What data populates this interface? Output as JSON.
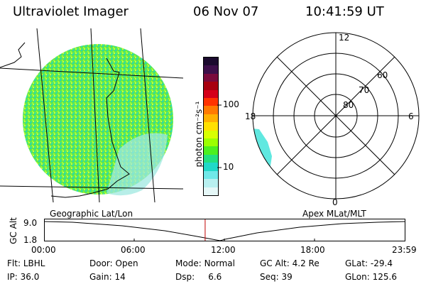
{
  "header": {
    "instrument": "Ultraviolet Imager",
    "date": "06 Nov 07",
    "time": "10:41:59 UT"
  },
  "colorbar": {
    "unit_label": "photon cm⁻²s⁻¹",
    "ticks": [
      "100",
      "10"
    ],
    "colors": [
      "#1b0a2e",
      "#3d0f4a",
      "#7a0a3c",
      "#a8000f",
      "#d4001a",
      "#ff3300",
      "#ff7a00",
      "#ffb000",
      "#ffe000",
      "#d8ff00",
      "#9cff00",
      "#4cf020",
      "#22e080",
      "#20d8c8",
      "#70e8e8",
      "#b8f0f0",
      "#e6f8f8"
    ]
  },
  "geo_map": {
    "projection_label": "Geographic Lat/Lon"
  },
  "polar": {
    "projection_label": "Apex MLat/MLT",
    "mlt_labels": {
      "top": "12",
      "left": "18",
      "right": "6",
      "bottom": "0"
    },
    "lat_labels": [
      "80",
      "70",
      "60"
    ]
  },
  "altitude_plot": {
    "axis_label": "GC Alt",
    "y_ticks": [
      "9.0",
      "1.8"
    ],
    "x_ticks": [
      "00:00",
      "06:00",
      "12:00",
      "18:00",
      "23:59"
    ],
    "current_time_hours": 10.7
  },
  "footer": {
    "row1": [
      {
        "label": "Flt:",
        "value": "LBHL"
      },
      {
        "label": "Door:",
        "value": "Open"
      },
      {
        "label": "Mode:",
        "value": "Normal"
      },
      {
        "label": "GC Alt:",
        "value": "4.2 Re"
      },
      {
        "label": "GLat:",
        "value": "-29.4"
      }
    ],
    "row2": [
      {
        "label": "IP:",
        "value": "36.0"
      },
      {
        "label": "Gain:",
        "value": "14"
      },
      {
        "label": "Dsp:",
        "value": "6.6"
      },
      {
        "label": "Seq:",
        "value": "39"
      },
      {
        "label": "GLon:",
        "value": "125.6"
      }
    ]
  }
}
